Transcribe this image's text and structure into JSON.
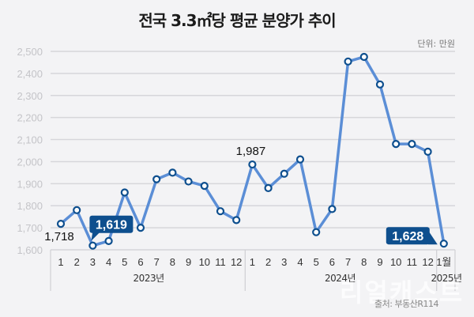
{
  "header": {
    "title": "전국 3.3㎡당 평균 분양가 추이",
    "unit": "단위: 만원"
  },
  "footer": {
    "source": "출처: 부동산R114",
    "watermark": "리얼캐스트"
  },
  "colors": {
    "background": "#f3f3f5",
    "line": "#5b8ed6",
    "marker": "#0e4f8e",
    "label_box": "#0e4f8e",
    "grid": "#d6d6da"
  },
  "chart_data": {
    "type": "line",
    "title": "전국 3.3㎡당 평균 분양가 추이",
    "ylabel": "단위: 만원",
    "xlabel": "",
    "ylim": [
      1600,
      2500
    ],
    "yticks": [
      1600,
      1700,
      1800,
      1900,
      2000,
      2100,
      2200,
      2300,
      2400,
      2500
    ],
    "ytick_labels": [
      "1,600",
      "1,700",
      "1,800",
      "1,900",
      "2,000",
      "2,100",
      "2,200",
      "2,300",
      "2,400",
      "2,500"
    ],
    "grid": true,
    "year_groups": [
      {
        "label": "2023년",
        "months": 12
      },
      {
        "label": "2024년",
        "months": 12
      },
      {
        "label": "2025년",
        "months": 1
      }
    ],
    "categories": [
      "1",
      "2",
      "3",
      "4",
      "5",
      "6",
      "7",
      "8",
      "9",
      "10",
      "11",
      "12",
      "1",
      "2",
      "3",
      "4",
      "5",
      "6",
      "7",
      "8",
      "9",
      "10",
      "11",
      "12",
      "1월"
    ],
    "series": [
      {
        "name": "전국 3.3㎡당 평균 분양가",
        "values": [
          1718,
          1780,
          1619,
          1640,
          1860,
          1700,
          1920,
          1950,
          1910,
          1890,
          1775,
          1735,
          1987,
          1880,
          1945,
          2010,
          1680,
          1785,
          2454,
          2475,
          2350,
          2080,
          2080,
          2045,
          1628
        ]
      }
    ],
    "annotations": [
      {
        "index": 0,
        "text": "1,718",
        "style": "plain"
      },
      {
        "index": 2,
        "text": "1,619",
        "style": "box"
      },
      {
        "index": 12,
        "text": "1,987",
        "style": "plain"
      },
      {
        "index": 24,
        "text": "1,628",
        "style": "box"
      }
    ],
    "source": "출처: 부동산R114"
  }
}
